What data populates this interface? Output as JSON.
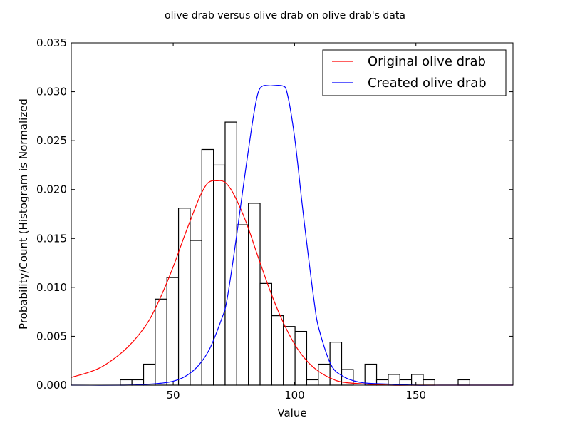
{
  "chart_data": {
    "type": "bar",
    "title": "olive drab versus olive drab on olive drab's data",
    "xlabel": "Value",
    "ylabel": "Probability/Count (Histogram is Normalized",
    "xlim": [
      8,
      190
    ],
    "ylim": [
      0,
      0.035
    ],
    "grid": false,
    "legend_position": "top-right",
    "x_ticks": [
      50,
      100,
      150
    ],
    "x_tick_labels": [
      "50",
      "100",
      "150"
    ],
    "y_ticks": [
      0,
      0.005,
      0.01,
      0.015,
      0.02,
      0.025,
      0.03,
      0.035
    ],
    "y_tick_labels": [
      "0.000",
      "0.005",
      "0.010",
      "0.015",
      "0.020",
      "0.025",
      "0.030",
      "0.035"
    ],
    "histogram": {
      "bin_edges": [
        28.2,
        33,
        37.8,
        42.6,
        47.4,
        52.2,
        57,
        61.8,
        66.6,
        71.4,
        76.2,
        81,
        85.8,
        90.6,
        95.4,
        100.2,
        105,
        109.8,
        114.6,
        119.4,
        124.2,
        129,
        133.8,
        138.6,
        143.4,
        148.2,
        153,
        157.8,
        162.6,
        167.4,
        172.2
      ],
      "values": [
        0.00055,
        0.00055,
        0.00215,
        0.0088,
        0.011,
        0.0181,
        0.0148,
        0.0241,
        0.0225,
        0.0269,
        0.0164,
        0.0186,
        0.0104,
        0.0071,
        0.006,
        0.0055,
        0.00055,
        0.00215,
        0.0044,
        0.0016,
        0,
        0.00215,
        0.00055,
        0.0011,
        0.00055,
        0.0011,
        0.00055,
        0,
        0,
        0.00055
      ],
      "fill": "#ffffff",
      "edge_color": "#000000"
    },
    "series": [
      {
        "name": "Original olive drab",
        "color": "#ff0000",
        "x": [
          8,
          15,
          20,
          25,
          30,
          35,
          40,
          45,
          50,
          55,
          60,
          62,
          64,
          66,
          68,
          70,
          72,
          75,
          80,
          85,
          90,
          95,
          100,
          105,
          110,
          115,
          120,
          130,
          140,
          150,
          160,
          175,
          190
        ],
        "y": [
          0.0008,
          0.0013,
          0.0018,
          0.0026,
          0.0036,
          0.0049,
          0.0066,
          0.0091,
          0.0121,
          0.0155,
          0.0187,
          0.0198,
          0.0206,
          0.0209,
          0.0209,
          0.0209,
          0.0206,
          0.0195,
          0.0167,
          0.0131,
          0.0096,
          0.0066,
          0.0042,
          0.0025,
          0.0014,
          0.0007,
          0.0003,
          0.0001,
          0,
          0,
          0,
          0,
          0
        ]
      },
      {
        "name": "Created olive drab",
        "color": "#0000ff",
        "x": [
          8,
          30,
          40,
          45,
          50,
          55,
          60,
          65,
          70,
          72,
          75,
          78,
          80,
          83,
          85,
          87,
          90,
          95,
          97,
          100,
          103,
          105,
          108,
          110,
          115,
          120,
          125,
          130,
          140,
          150,
          160,
          175,
          190
        ],
        "y": [
          0,
          0,
          0.0001,
          0.0002,
          0.0004,
          0.0009,
          0.0019,
          0.0037,
          0.0068,
          0.0085,
          0.0133,
          0.0187,
          0.0223,
          0.0274,
          0.0299,
          0.0306,
          0.0306,
          0.0306,
          0.0298,
          0.0254,
          0.0188,
          0.0146,
          0.0087,
          0.0058,
          0.0021,
          0.0009,
          0.0004,
          0.0002,
          0.0001,
          0,
          0,
          0,
          0
        ]
      }
    ]
  }
}
